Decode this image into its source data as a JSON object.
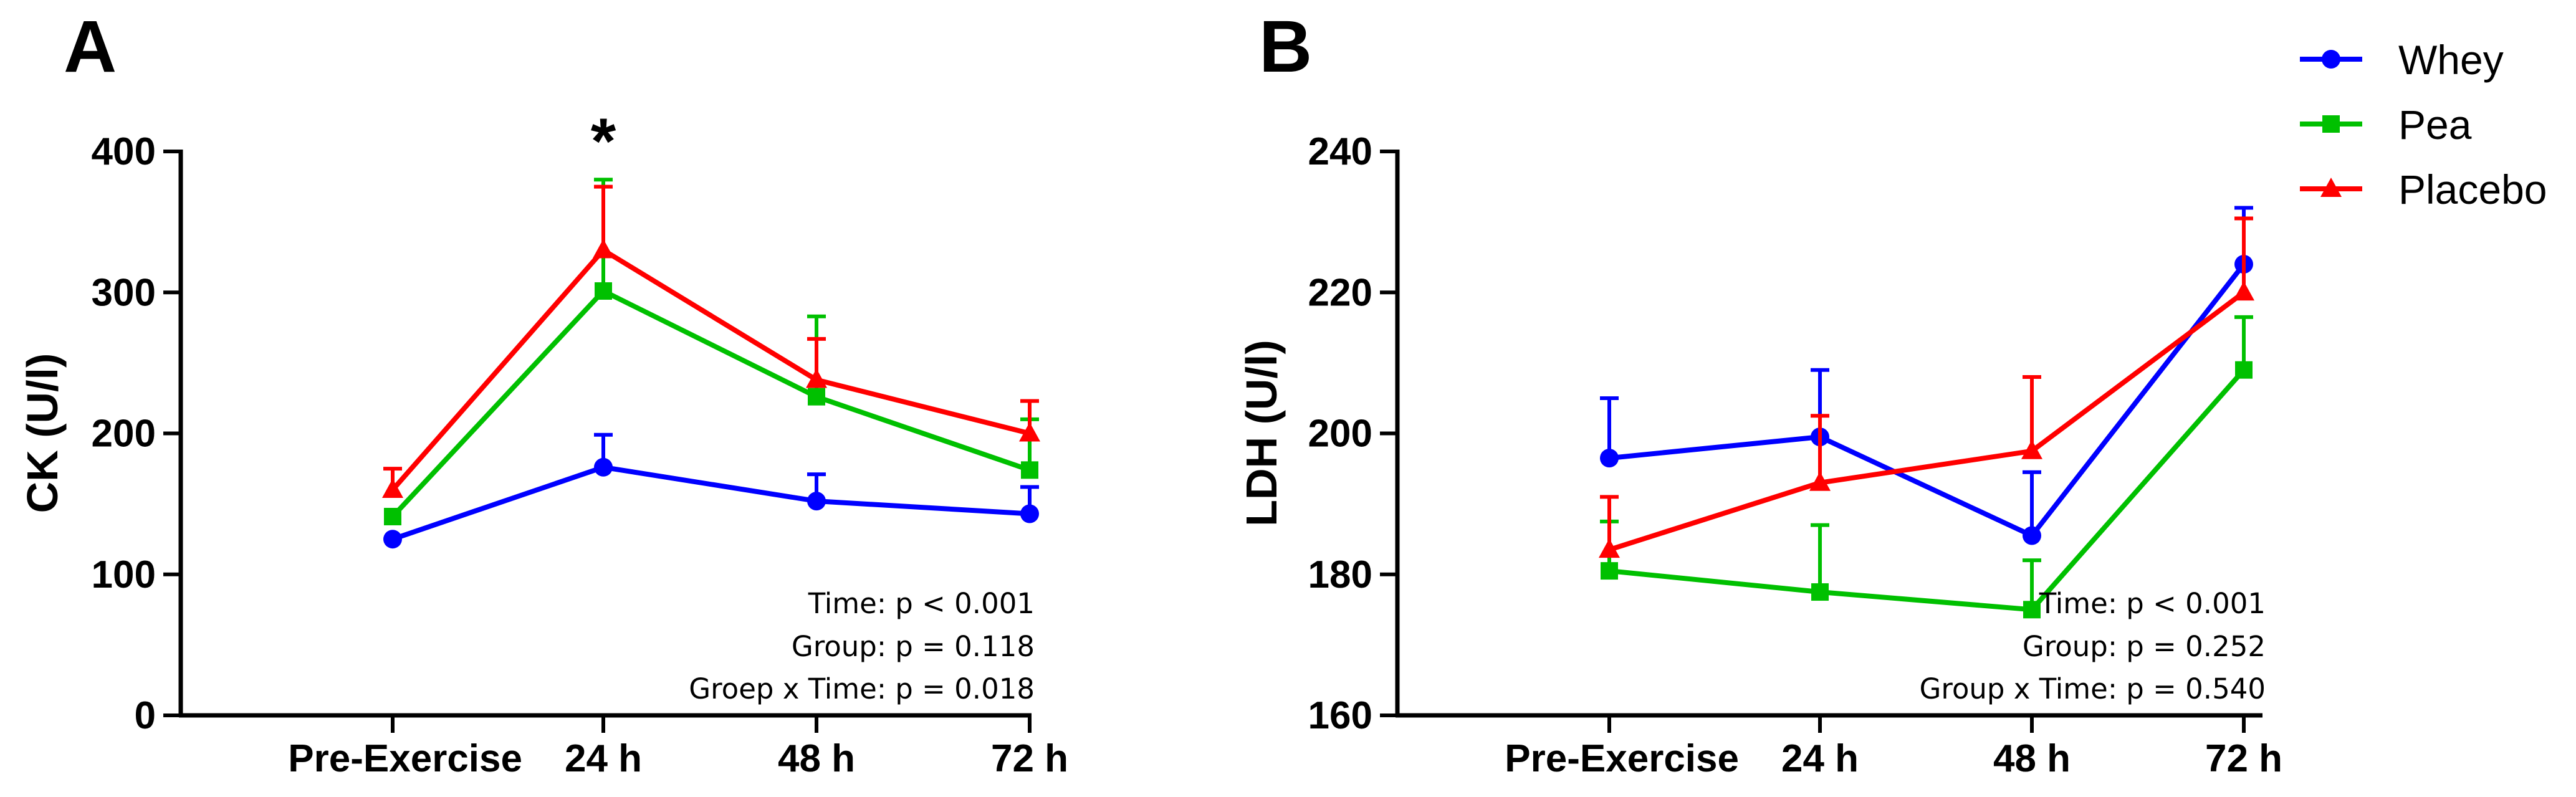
{
  "chart_data": [
    {
      "type": "line",
      "panel_label": "A",
      "xlabel": "",
      "ylabel": "CK (U/l)",
      "categories": [
        "Pre-Exercise",
        "24 h",
        "48 h",
        "72 h"
      ],
      "ylim": [
        0,
        400
      ],
      "yticks": [
        0,
        100,
        200,
        300,
        400
      ],
      "series": [
        {
          "name": "Whey",
          "color": "#0000ff",
          "marker": "circle",
          "values": [
            125,
            176,
            152,
            143
          ],
          "errors": [
            null,
            23,
            19,
            19
          ]
        },
        {
          "name": "Pea",
          "color": "#00c000",
          "marker": "square",
          "values": [
            141,
            301,
            226,
            174
          ],
          "errors": [
            null,
            79,
            57,
            36
          ]
        },
        {
          "name": "Placebo",
          "color": "#ff0000",
          "marker": "triangle",
          "values": [
            160,
            330,
            238,
            200
          ],
          "errors": [
            15,
            45,
            29,
            23
          ]
        }
      ],
      "annotations": [
        {
          "text": "*",
          "category": "24 h"
        }
      ],
      "stats": [
        "Time: p < 0.001",
        "Group: p = 0.118",
        "Groep x Time: p = 0.018"
      ]
    },
    {
      "type": "line",
      "panel_label": "B",
      "xlabel": "",
      "ylabel": "LDH (U/l)",
      "categories": [
        "Pre-Exercise",
        "24 h",
        "48 h",
        "72 h"
      ],
      "ylim": [
        160,
        240
      ],
      "yticks": [
        160,
        180,
        200,
        220,
        240
      ],
      "series": [
        {
          "name": "Whey",
          "color": "#0000ff",
          "marker": "circle",
          "values": [
            196.5,
            199.5,
            185.5,
            224
          ],
          "errors": [
            8.5,
            9.5,
            9,
            8
          ]
        },
        {
          "name": "Pea",
          "color": "#00c000",
          "marker": "square",
          "values": [
            180.5,
            177.5,
            175,
            209
          ],
          "errors": [
            7,
            9.5,
            7,
            7.5
          ]
        },
        {
          "name": "Placebo",
          "color": "#ff0000",
          "marker": "triangle",
          "values": [
            183.5,
            193,
            197.5,
            220
          ],
          "errors": [
            7.5,
            9.5,
            10.5,
            10.5
          ]
        }
      ],
      "annotations": [],
      "stats": [
        "Time: p < 0.001",
        "Group: p = 0.252",
        "Group x Time: p = 0.540"
      ]
    }
  ],
  "legend": {
    "placement": "top-right",
    "items": [
      {
        "name": "Whey",
        "color": "#0000ff",
        "marker": "circle"
      },
      {
        "name": "Pea",
        "color": "#00c000",
        "marker": "square"
      },
      {
        "name": "Placebo",
        "color": "#ff0000",
        "marker": "triangle"
      }
    ]
  }
}
